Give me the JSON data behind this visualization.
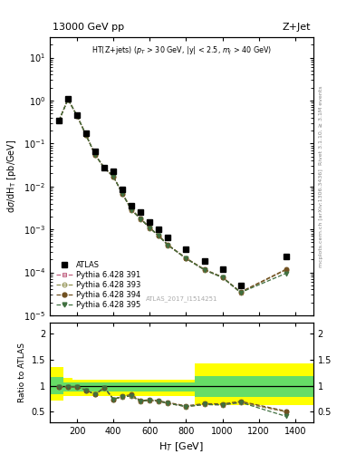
{
  "title_left": "13000 GeV pp",
  "title_right": "Z+Jet",
  "annotation": "HT(Z+jets) (p$_T$ > 30 GeV, |y| < 2.5, m$_j$ > 40 GeV)",
  "watermark": "ATLAS_2017_I1514251",
  "ylabel_main": "dσ/dH_T [pb/GeV]",
  "ylabel_ratio": "Ratio to ATLAS",
  "xlabel": "H$_T$ [GeV]",
  "right_label": "Rivet 3.1.10, ≥ 3.1M events",
  "right_label2": "mcplots.cern.ch [arXiv:1306.3436]",
  "atlas_x": [
    100,
    150,
    200,
    250,
    300,
    350,
    400,
    450,
    500,
    550,
    600,
    650,
    700,
    800,
    900,
    1000,
    1100,
    1350
  ],
  "atlas_y": [
    0.35,
    1.1,
    0.45,
    0.17,
    0.065,
    0.028,
    0.023,
    0.0085,
    0.0035,
    0.0025,
    0.0015,
    0.001,
    0.00065,
    0.00035,
    0.00018,
    0.00012,
    5e-05,
    0.00023
  ],
  "atlas_yerr": [
    0.03,
    0.09,
    0.03,
    0.013,
    0.005,
    0.002,
    0.002,
    0.0007,
    0.0003,
    0.0002,
    0.00013,
    9e-05,
    6e-05,
    3e-05,
    2e-05,
    1e-05,
    5e-06,
    2e-05
  ],
  "py391_x": [
    100,
    150,
    200,
    250,
    300,
    350,
    400,
    450,
    500,
    550,
    600,
    650,
    700,
    800,
    900,
    1000,
    1100,
    1350
  ],
  "py391_y": [
    0.34,
    1.07,
    0.44,
    0.155,
    0.054,
    0.027,
    0.017,
    0.0067,
    0.0028,
    0.00175,
    0.00108,
    0.0007,
    0.00043,
    0.00021,
    0.000115,
    7.6e-05,
    3.4e-05,
    0.000115
  ],
  "py393_x": [
    100,
    150,
    200,
    250,
    300,
    350,
    400,
    450,
    500,
    550,
    600,
    650,
    700,
    800,
    900,
    1000,
    1100,
    1350
  ],
  "py393_y": [
    0.34,
    1.07,
    0.44,
    0.155,
    0.054,
    0.027,
    0.017,
    0.0067,
    0.0028,
    0.00175,
    0.00108,
    0.0007,
    0.00043,
    0.00021,
    0.000115,
    7.6e-05,
    3.4e-05,
    0.000115
  ],
  "py394_x": [
    100,
    150,
    200,
    250,
    300,
    350,
    400,
    450,
    500,
    550,
    600,
    650,
    700,
    800,
    900,
    1000,
    1100,
    1350
  ],
  "py394_y": [
    0.34,
    1.08,
    0.44,
    0.155,
    0.054,
    0.027,
    0.017,
    0.0068,
    0.0029,
    0.00178,
    0.0011,
    0.00071,
    0.00044,
    0.000215,
    0.000118,
    7.8e-05,
    3.5e-05,
    0.000118
  ],
  "py395_x": [
    100,
    150,
    200,
    250,
    300,
    350,
    400,
    450,
    500,
    550,
    600,
    650,
    700,
    800,
    900,
    1000,
    1100,
    1350
  ],
  "py395_y": [
    0.34,
    1.07,
    0.44,
    0.155,
    0.054,
    0.027,
    0.017,
    0.0067,
    0.0028,
    0.00175,
    0.00108,
    0.0007,
    0.00043,
    0.00021,
    0.000115,
    7.6e-05,
    3.4e-05,
    9.5e-05
  ],
  "color_391": "#c06080",
  "color_393": "#909050",
  "color_394": "#705020",
  "color_395": "#407040",
  "bin_edges": [
    50,
    125,
    175,
    225,
    275,
    325,
    375,
    425,
    475,
    525,
    575,
    625,
    675,
    750,
    850,
    950,
    1050,
    1200,
    1500
  ],
  "band_yellow_lo": [
    0.72,
    0.8,
    0.8,
    0.8,
    0.8,
    0.8,
    0.8,
    0.8,
    0.8,
    0.8,
    0.8,
    0.8,
    0.8,
    0.8,
    0.62,
    0.62,
    0.62,
    0.62
  ],
  "band_yellow_hi": [
    1.35,
    1.15,
    1.12,
    1.12,
    1.12,
    1.12,
    1.12,
    1.12,
    1.12,
    1.12,
    1.12,
    1.12,
    1.12,
    1.12,
    1.42,
    1.42,
    1.42,
    1.42
  ],
  "band_green_lo": [
    0.83,
    0.88,
    0.88,
    0.88,
    0.88,
    0.88,
    0.88,
    0.88,
    0.88,
    0.88,
    0.88,
    0.88,
    0.88,
    0.88,
    0.78,
    0.78,
    0.78,
    0.78
  ],
  "band_green_hi": [
    1.16,
    1.06,
    1.06,
    1.06,
    1.06,
    1.06,
    1.06,
    1.06,
    1.06,
    1.06,
    1.06,
    1.06,
    1.06,
    1.06,
    1.18,
    1.18,
    1.18,
    1.18
  ],
  "xlim": [
    50,
    1500
  ],
  "ylim_main": [
    1e-05,
    30
  ],
  "ylim_ratio": [
    0.3,
    2.2
  ],
  "ratio_yticks": [
    0.5,
    1.0,
    1.5,
    2.0
  ],
  "ratio_yticklabels": [
    "0.5",
    "1",
    "1.5",
    "2"
  ]
}
